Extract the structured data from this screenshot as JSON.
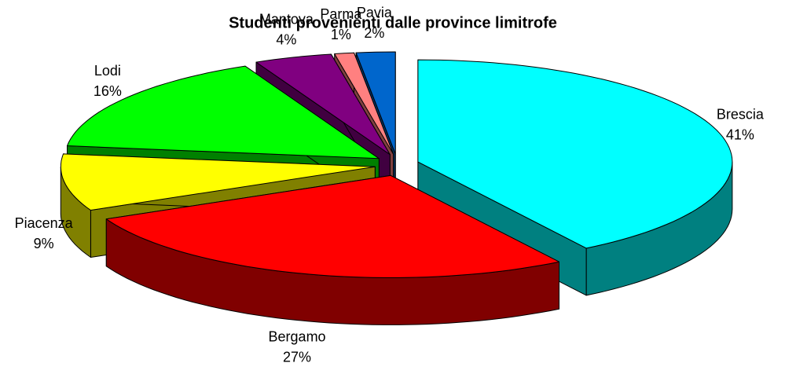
{
  "chart_data": {
    "type": "pie3d",
    "title": "Studenti provenienti dalle province limitrofe",
    "categories": [
      "Brescia",
      "Bergamo",
      "Piacenza",
      "Lodi",
      "Mantova",
      "Parma",
      "Pavia"
    ],
    "values": [
      41,
      27,
      9,
      16,
      4,
      1,
      2
    ],
    "value_labels": [
      "41%",
      "27%",
      "9%",
      "16%",
      "4%",
      "1%",
      "2%"
    ],
    "colors": [
      "#00ffff",
      "#ff0000",
      "#ffff00",
      "#00ff00",
      "#800080",
      "#ff8080",
      "#0066cc"
    ]
  }
}
